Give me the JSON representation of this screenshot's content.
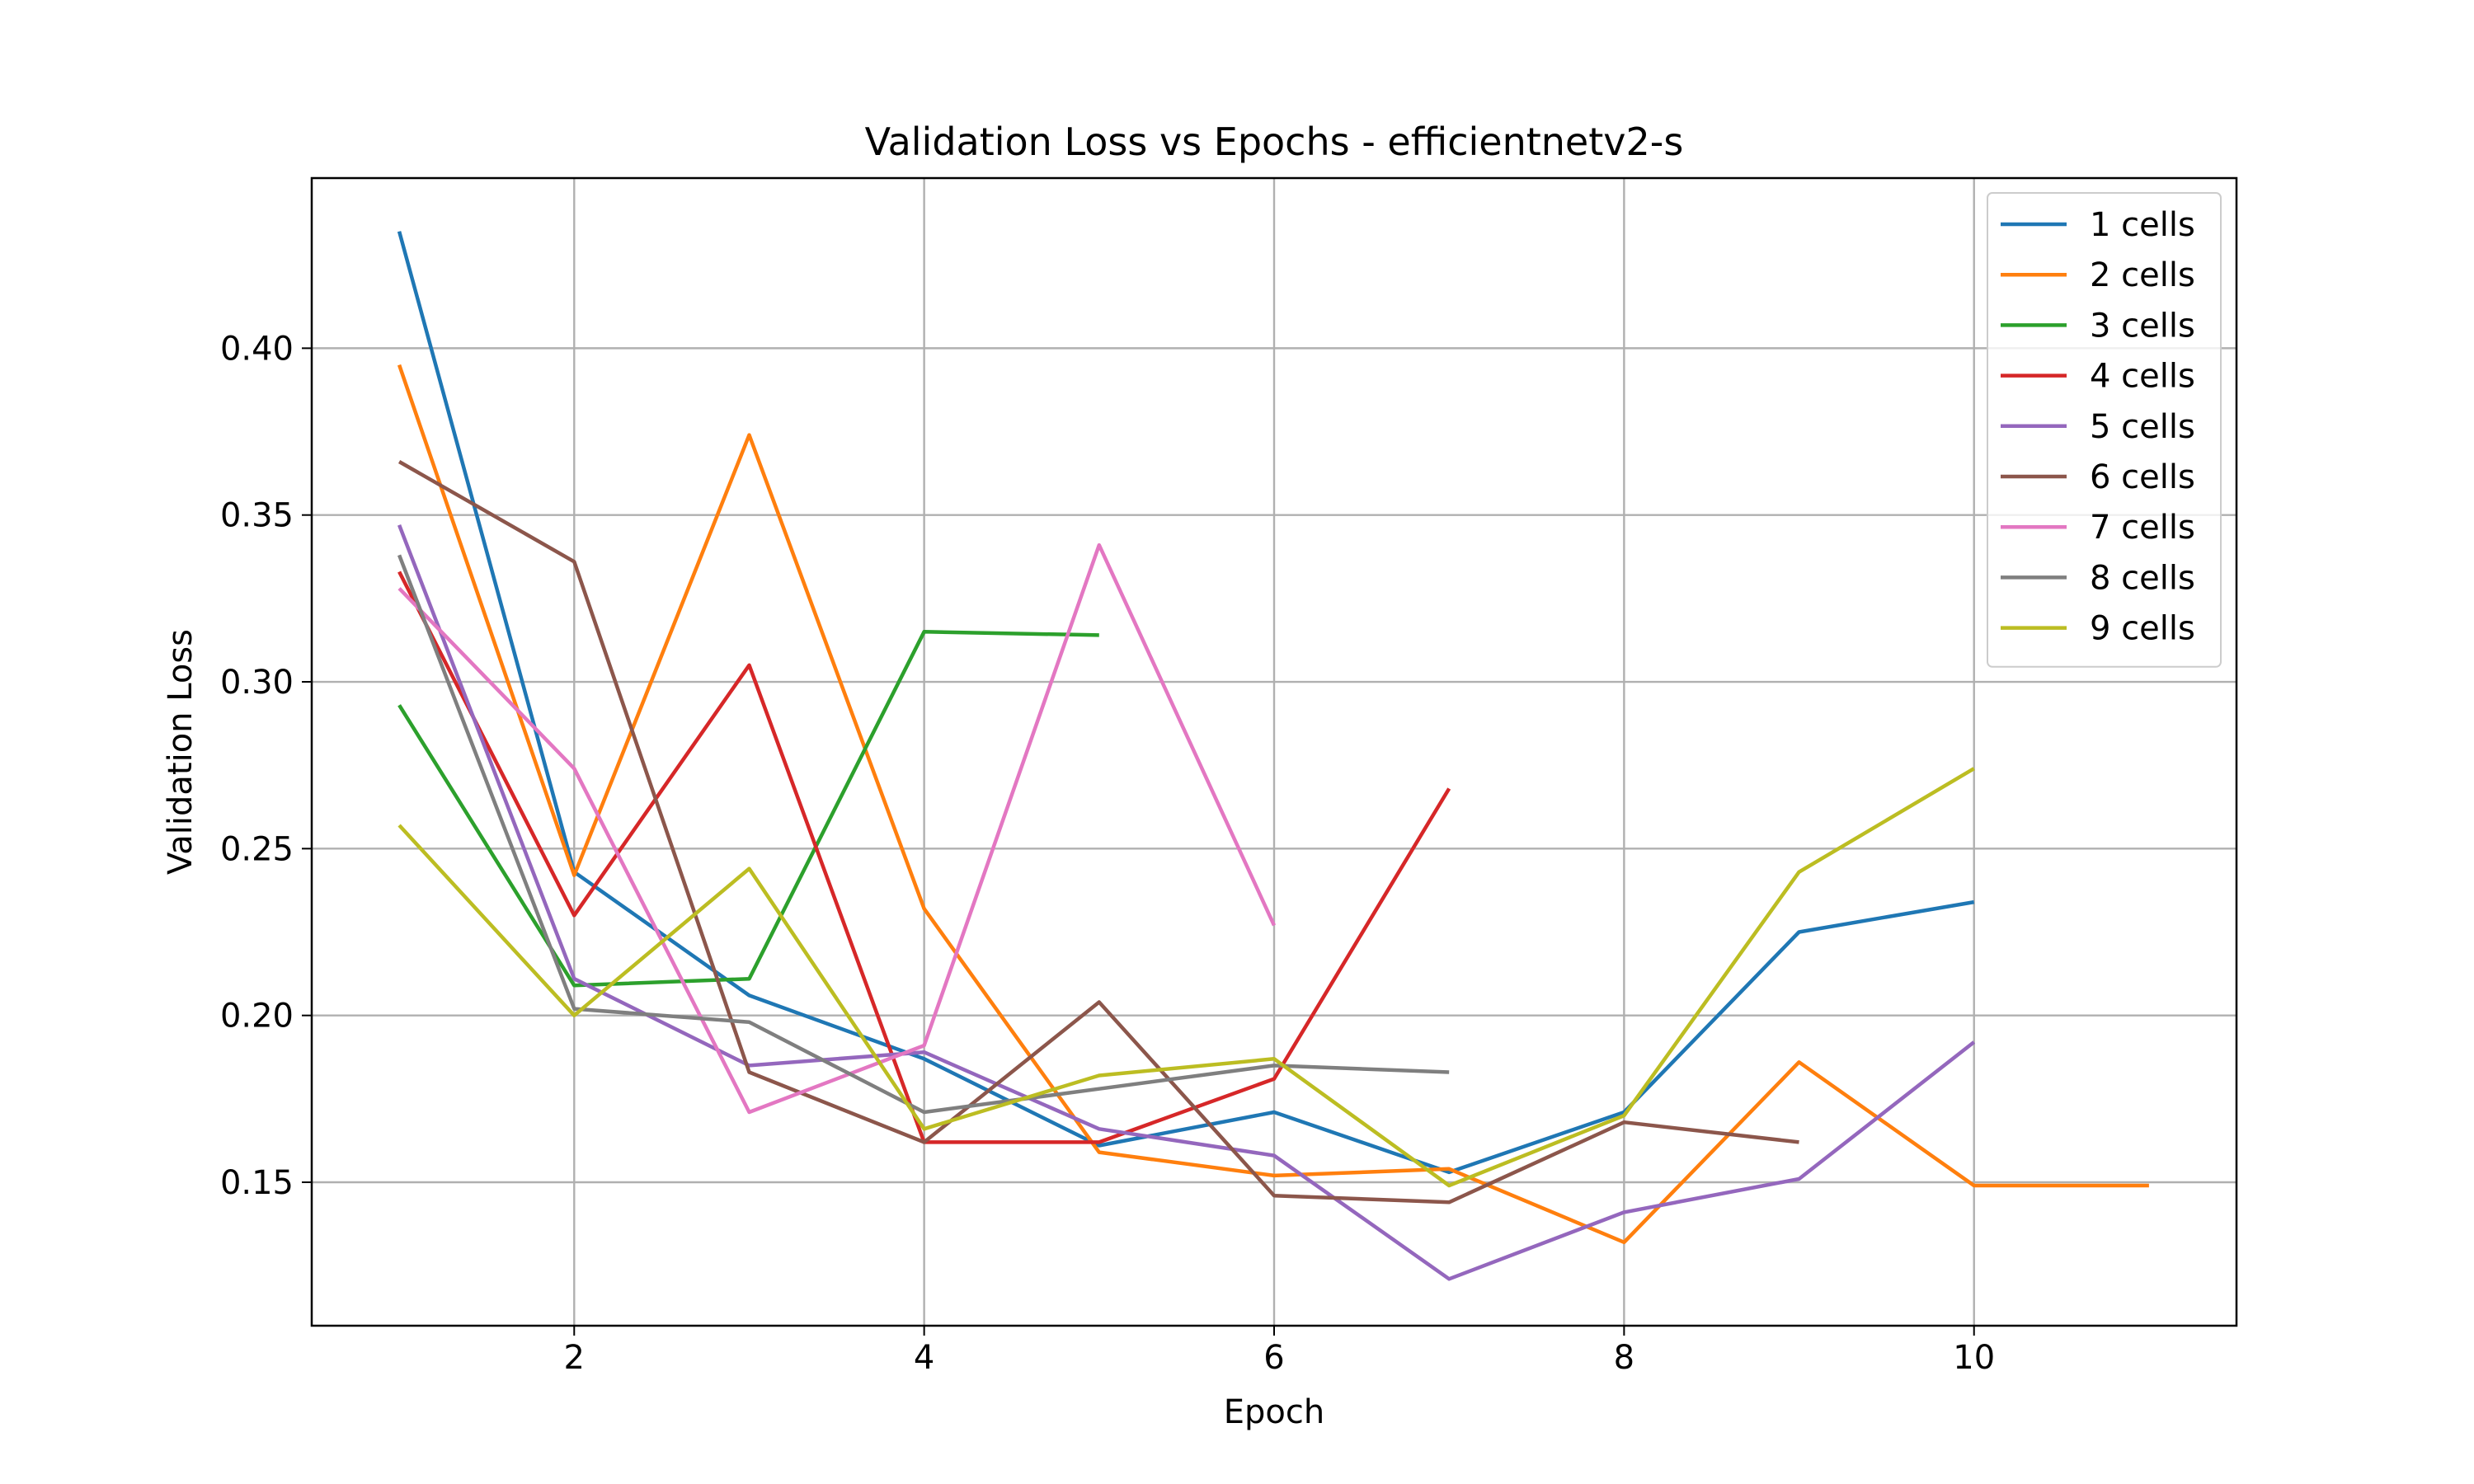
{
  "chart_data": {
    "type": "line",
    "title": "Validation Loss vs Epochs - efficientnetv2-s",
    "xlabel": "Epoch",
    "ylabel": "Validation Loss",
    "xlim": [
      0.5,
      11.5
    ],
    "ylim": [
      0.107,
      0.451
    ],
    "xticks": [
      2,
      4,
      6,
      8,
      10
    ],
    "yticks": [
      0.15,
      0.2,
      0.25,
      0.3,
      0.35,
      0.4
    ],
    "ytick_labels": [
      "0.15",
      "0.20",
      "0.25",
      "0.30",
      "0.35",
      "0.40"
    ],
    "grid": true,
    "legend_position": "top-right",
    "series": [
      {
        "name": "1 cells",
        "color": "#1f77b4",
        "x": [
          1,
          2,
          3,
          4,
          5,
          6,
          7,
          8,
          9,
          10
        ],
        "values": [
          0.435,
          0.243,
          0.206,
          0.187,
          0.161,
          0.171,
          0.153,
          0.171,
          0.225,
          0.234
        ]
      },
      {
        "name": "2 cells",
        "color": "#ff7f0e",
        "x": [
          1,
          2,
          3,
          4,
          5,
          6,
          7,
          8,
          9,
          10,
          11
        ],
        "values": [
          0.395,
          0.242,
          0.374,
          0.232,
          0.159,
          0.152,
          0.154,
          0.132,
          0.186,
          0.149,
          0.149
        ]
      },
      {
        "name": "3 cells",
        "color": "#2ca02c",
        "x": [
          1,
          2,
          3,
          4,
          5
        ],
        "values": [
          0.293,
          0.209,
          0.211,
          0.315,
          0.314
        ]
      },
      {
        "name": "4 cells",
        "color": "#d62728",
        "x": [
          1,
          2,
          3,
          4,
          5,
          6,
          7
        ],
        "values": [
          0.333,
          0.23,
          0.305,
          0.162,
          0.162,
          0.181,
          0.268
        ]
      },
      {
        "name": "5 cells",
        "color": "#9467bd",
        "x": [
          1,
          2,
          3,
          4,
          5,
          6,
          7,
          8,
          9,
          10
        ],
        "values": [
          0.347,
          0.211,
          0.185,
          0.189,
          0.166,
          0.158,
          0.121,
          0.141,
          0.151,
          0.192
        ]
      },
      {
        "name": "6 cells",
        "color": "#8c564b",
        "x": [
          1,
          2,
          3,
          4,
          5,
          6,
          7,
          8,
          9
        ],
        "values": [
          0.366,
          0.336,
          0.183,
          0.162,
          0.204,
          0.146,
          0.144,
          0.168,
          0.162
        ]
      },
      {
        "name": "7 cells",
        "color": "#e377c2",
        "x": [
          1,
          2,
          3,
          4,
          5,
          6
        ],
        "values": [
          0.328,
          0.274,
          0.171,
          0.191,
          0.341,
          0.227
        ]
      },
      {
        "name": "8 cells",
        "color": "#7f7f7f",
        "x": [
          1,
          2,
          3,
          4,
          5,
          6,
          7
        ],
        "values": [
          0.338,
          0.202,
          0.198,
          0.171,
          0.178,
          0.185,
          0.183
        ]
      },
      {
        "name": "9 cells",
        "color": "#bcbd22",
        "x": [
          1,
          2,
          3,
          4,
          5,
          6,
          7,
          8,
          9,
          10
        ],
        "values": [
          0.257,
          0.2,
          0.244,
          0.166,
          0.182,
          0.187,
          0.149,
          0.17,
          0.243,
          0.274
        ]
      }
    ]
  }
}
